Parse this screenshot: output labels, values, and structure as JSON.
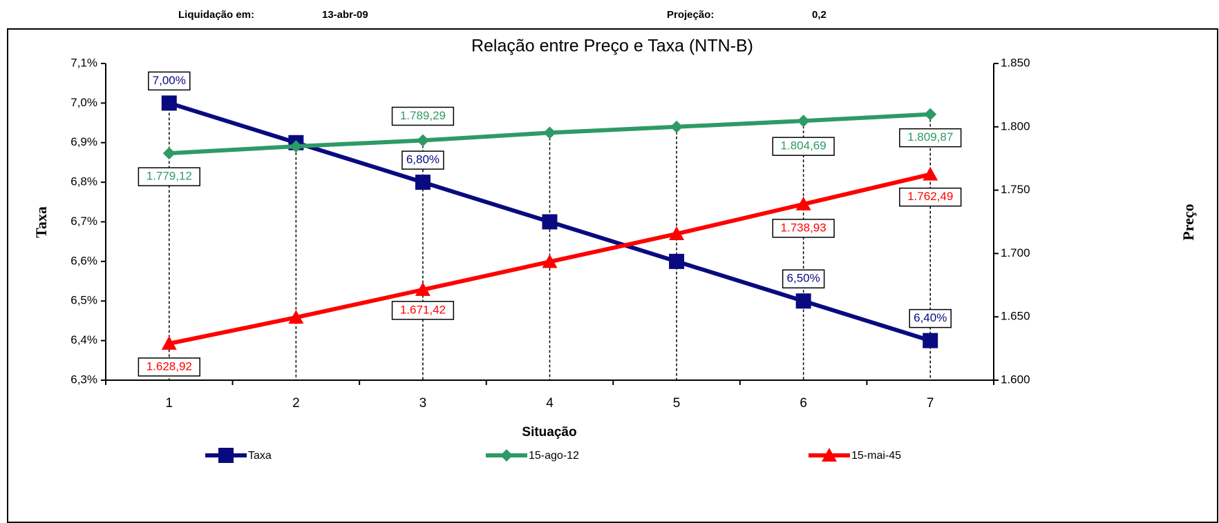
{
  "header": {
    "settlement_label": "Liquidação em:",
    "settlement_date": "13-abr-09",
    "projection_label": "Projeção:",
    "projection_value": "0,2"
  },
  "chart_data": {
    "type": "line",
    "title": "Relação entre Preço e Taxa (NTN-B)",
    "x_label": "Situação",
    "y_label": "Taxa",
    "y2_label": "Preço",
    "categories": [
      "1",
      "2",
      "3",
      "4",
      "5",
      "6",
      "7"
    ],
    "ylim": [
      6.3,
      7.1
    ],
    "yticks": [
      {
        "value": 6.3,
        "label": "6,3%"
      },
      {
        "value": 6.4,
        "label": "6,4%"
      },
      {
        "value": 6.5,
        "label": "6,5%"
      },
      {
        "value": 6.6,
        "label": "6,6%"
      },
      {
        "value": 6.7,
        "label": "6,7%"
      },
      {
        "value": 6.8,
        "label": "6,8%"
      },
      {
        "value": 6.9,
        "label": "6,9%"
      },
      {
        "value": 7.0,
        "label": "7,0%"
      },
      {
        "value": 7.1,
        "label": "7,1%"
      }
    ],
    "y2lim": [
      1600,
      1850
    ],
    "y2ticks": [
      {
        "value": 1600,
        "label": "1.600"
      },
      {
        "value": 1650,
        "label": "1.650"
      },
      {
        "value": 1700,
        "label": "1.700"
      },
      {
        "value": 1750,
        "label": "1.750"
      },
      {
        "value": 1800,
        "label": "1.800"
      },
      {
        "value": 1850,
        "label": "1.850"
      }
    ],
    "grid": false,
    "legend": "bottom",
    "series": [
      {
        "name": "Taxa",
        "color": "#0a0a80",
        "marker": "square",
        "axis": "y",
        "values": [
          7.0,
          6.9,
          6.8,
          6.7,
          6.6,
          6.5,
          6.4
        ],
        "value_labels": [
          "7,00%",
          null,
          "6,80%",
          null,
          null,
          "6,50%",
          "6,40%"
        ]
      },
      {
        "name": "15-ago-12",
        "color": "#2e9a66",
        "marker": "diamond",
        "axis": "y2",
        "values": [
          1779.12,
          1784.6,
          1789.29,
          1795.3,
          1800.0,
          1804.69,
          1809.87
        ],
        "value_labels": [
          "1.779,12",
          null,
          "1.789,29",
          null,
          null,
          "1.804,69",
          "1.809,87"
        ]
      },
      {
        "name": "15-mai-45",
        "color": "#ff0000",
        "marker": "triangle",
        "axis": "y2",
        "values": [
          1628.92,
          1649.5,
          1671.42,
          1693.5,
          1715.5,
          1738.93,
          1762.49
        ],
        "value_labels": [
          "1.628,92",
          null,
          "1.671,42",
          null,
          null,
          "1.738,93",
          "1.762,49"
        ]
      }
    ]
  }
}
